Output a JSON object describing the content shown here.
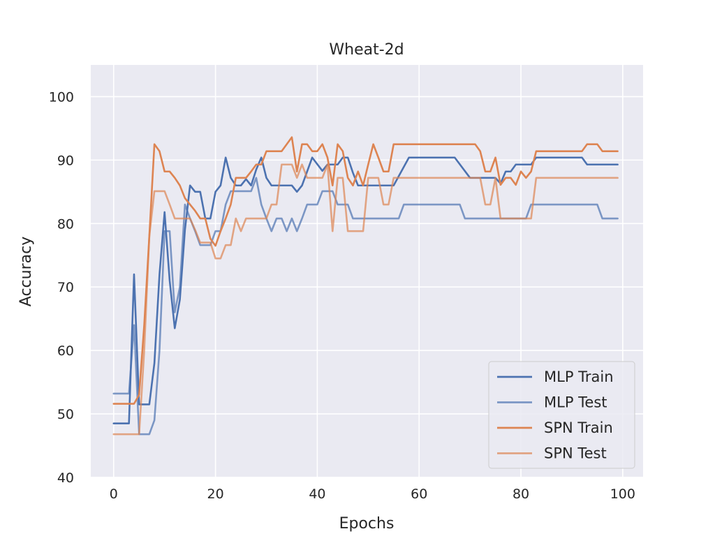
{
  "chart_data": {
    "type": "line",
    "title": "Wheat-2d",
    "xlabel": "Epochs",
    "ylabel": "Accuracy",
    "xlim": [
      -4.5,
      104
    ],
    "ylim": [
      40,
      105
    ],
    "xticks": [
      0,
      20,
      40,
      60,
      80,
      100
    ],
    "yticks": [
      40,
      50,
      60,
      70,
      80,
      90,
      100
    ],
    "grid": true,
    "legend_position": "lower-right",
    "background": "#eaeaf2",
    "series": [
      {
        "name": "MLP Train",
        "color": "#4c72b0",
        "opacity": 1.0,
        "points": [
          [
            0,
            48.5
          ],
          [
            3,
            48.5
          ],
          [
            4,
            72.0
          ],
          [
            5,
            51.5
          ],
          [
            7,
            51.5
          ],
          [
            8,
            58
          ],
          [
            9,
            72
          ],
          [
            10,
            81.8
          ],
          [
            11,
            71
          ],
          [
            12,
            63.5
          ],
          [
            13,
            68
          ],
          [
            14,
            79
          ],
          [
            15,
            86
          ],
          [
            16,
            85
          ],
          [
            17,
            85
          ],
          [
            18,
            80.8
          ],
          [
            19,
            80.8
          ],
          [
            20,
            85
          ],
          [
            21,
            86
          ],
          [
            22,
            90.4
          ],
          [
            23,
            87.2
          ],
          [
            24,
            86
          ],
          [
            25,
            86
          ],
          [
            26,
            87
          ],
          [
            27,
            86
          ],
          [
            28,
            88.5
          ],
          [
            29,
            90.4
          ],
          [
            30,
            87.2
          ],
          [
            31,
            86
          ],
          [
            35,
            86
          ],
          [
            36,
            85
          ],
          [
            37,
            86
          ],
          [
            38,
            88.2
          ],
          [
            39,
            90.4
          ],
          [
            41,
            88.3
          ],
          [
            42,
            89.3
          ],
          [
            44,
            89.3
          ],
          [
            45,
            90.4
          ],
          [
            46,
            90.4
          ],
          [
            47,
            88
          ],
          [
            48,
            86
          ],
          [
            55,
            86
          ],
          [
            58,
            90.4
          ],
          [
            67,
            90.4
          ],
          [
            70,
            87.2
          ],
          [
            75,
            87.2
          ],
          [
            76,
            86.3
          ],
          [
            77,
            88.2
          ],
          [
            78,
            88.2
          ],
          [
            79,
            89.3
          ],
          [
            82,
            89.3
          ],
          [
            83,
            90.4
          ],
          [
            92,
            90.4
          ],
          [
            93,
            89.3
          ],
          [
            99,
            89.3
          ]
        ]
      },
      {
        "name": "MLP Test",
        "color": "#4c72b0",
        "opacity": 0.7,
        "points": [
          [
            0,
            53.2
          ],
          [
            3,
            53.2
          ],
          [
            4,
            64
          ],
          [
            5,
            46.8
          ],
          [
            7,
            46.8
          ],
          [
            8,
            49
          ],
          [
            9,
            60
          ],
          [
            10,
            78.8
          ],
          [
            11,
            78.8
          ],
          [
            12,
            66
          ],
          [
            13,
            70
          ],
          [
            14,
            83
          ],
          [
            15,
            80.8
          ],
          [
            16,
            78.8
          ],
          [
            17,
            76.6
          ],
          [
            19,
            76.6
          ],
          [
            20,
            78.8
          ],
          [
            21,
            78.8
          ],
          [
            22,
            83
          ],
          [
            23,
            85.1
          ],
          [
            27,
            85.1
          ],
          [
            28,
            87.2
          ],
          [
            29,
            83
          ],
          [
            30,
            80.8
          ],
          [
            31,
            78.8
          ],
          [
            32,
            80.8
          ],
          [
            33,
            80.8
          ],
          [
            34,
            78.8
          ],
          [
            35,
            80.8
          ],
          [
            36,
            78.8
          ],
          [
            37,
            80.8
          ],
          [
            38,
            83
          ],
          [
            40,
            83
          ],
          [
            41,
            85.1
          ],
          [
            43,
            85.1
          ],
          [
            44,
            83
          ],
          [
            46,
            83
          ],
          [
            47,
            80.8
          ],
          [
            56,
            80.8
          ],
          [
            57,
            83
          ],
          [
            68,
            83
          ],
          [
            69,
            80.8
          ],
          [
            81,
            80.8
          ],
          [
            82,
            83
          ],
          [
            95,
            83
          ],
          [
            96,
            80.8
          ],
          [
            99,
            80.8
          ]
        ]
      },
      {
        "name": "SPN Train",
        "color": "#dd8452",
        "opacity": 1.0,
        "points": [
          [
            0,
            51.6
          ],
          [
            4,
            51.6
          ],
          [
            5,
            53
          ],
          [
            6,
            64
          ],
          [
            7,
            78
          ],
          [
            8,
            92.5
          ],
          [
            9,
            91.4
          ],
          [
            10,
            88.2
          ],
          [
            11,
            88.2
          ],
          [
            12,
            87.2
          ],
          [
            13,
            86
          ],
          [
            14,
            84
          ],
          [
            15,
            83
          ],
          [
            16,
            82
          ],
          [
            17,
            80.8
          ],
          [
            18,
            80.8
          ],
          [
            19,
            77.6
          ],
          [
            20,
            76.5
          ],
          [
            21,
            78.8
          ],
          [
            22,
            80.8
          ],
          [
            23,
            83
          ],
          [
            24,
            87.2
          ],
          [
            26,
            87.2
          ],
          [
            27,
            88.2
          ],
          [
            28,
            89.3
          ],
          [
            29,
            89.3
          ],
          [
            30,
            91.4
          ],
          [
            33,
            91.4
          ],
          [
            34,
            92.5
          ],
          [
            35,
            93.6
          ],
          [
            36,
            88.2
          ],
          [
            37,
            92.5
          ],
          [
            38,
            92.5
          ],
          [
            39,
            91.4
          ],
          [
            40,
            91.4
          ],
          [
            41,
            92.5
          ],
          [
            42,
            90.4
          ],
          [
            43,
            86
          ],
          [
            44,
            92.5
          ],
          [
            45,
            91.4
          ],
          [
            46,
            87.2
          ],
          [
            47,
            86
          ],
          [
            48,
            88.2
          ],
          [
            49,
            86
          ],
          [
            50,
            89.3
          ],
          [
            51,
            92.5
          ],
          [
            52,
            90.4
          ],
          [
            53,
            88.2
          ],
          [
            54,
            88.2
          ],
          [
            55,
            92.5
          ],
          [
            71,
            92.5
          ],
          [
            72,
            91.4
          ],
          [
            73,
            88.2
          ],
          [
            74,
            88.2
          ],
          [
            75,
            90.4
          ],
          [
            76,
            86.1
          ],
          [
            77,
            87.2
          ],
          [
            78,
            87.2
          ],
          [
            79,
            86.1
          ],
          [
            80,
            88.2
          ],
          [
            81,
            87.2
          ],
          [
            82,
            88.2
          ],
          [
            83,
            91.4
          ],
          [
            92,
            91.4
          ],
          [
            93,
            92.5
          ],
          [
            95,
            92.5
          ],
          [
            96,
            91.4
          ],
          [
            99,
            91.4
          ]
        ]
      },
      {
        "name": "SPN Test",
        "color": "#dd8452",
        "opacity": 0.7,
        "points": [
          [
            0,
            46.8
          ],
          [
            5,
            46.8
          ],
          [
            6,
            60
          ],
          [
            7,
            78
          ],
          [
            8,
            85.1
          ],
          [
            10,
            85.1
          ],
          [
            11,
            83
          ],
          [
            12,
            80.8
          ],
          [
            15,
            80.8
          ],
          [
            16,
            79
          ],
          [
            17,
            77
          ],
          [
            19,
            77
          ],
          [
            20,
            74.5
          ],
          [
            21,
            74.5
          ],
          [
            22,
            76.6
          ],
          [
            23,
            76.6
          ],
          [
            24,
            80.8
          ],
          [
            25,
            78.8
          ],
          [
            26,
            80.8
          ],
          [
            30,
            80.8
          ],
          [
            31,
            83
          ],
          [
            32,
            83
          ],
          [
            33,
            89.3
          ],
          [
            35,
            89.3
          ],
          [
            36,
            87.2
          ],
          [
            37,
            89.3
          ],
          [
            38,
            87.2
          ],
          [
            41,
            87.2
          ],
          [
            42,
            89.3
          ],
          [
            43,
            78.8
          ],
          [
            44,
            87.2
          ],
          [
            45,
            87.2
          ],
          [
            46,
            78.8
          ],
          [
            49,
            78.8
          ],
          [
            50,
            87.2
          ],
          [
            52,
            87.2
          ],
          [
            53,
            83
          ],
          [
            54,
            83
          ],
          [
            55,
            87.2
          ],
          [
            72,
            87.2
          ],
          [
            73,
            83
          ],
          [
            74,
            83
          ],
          [
            75,
            87.2
          ],
          [
            76,
            80.8
          ],
          [
            82,
            80.8
          ],
          [
            83,
            87.2
          ],
          [
            99,
            87.2
          ]
        ]
      }
    ]
  }
}
